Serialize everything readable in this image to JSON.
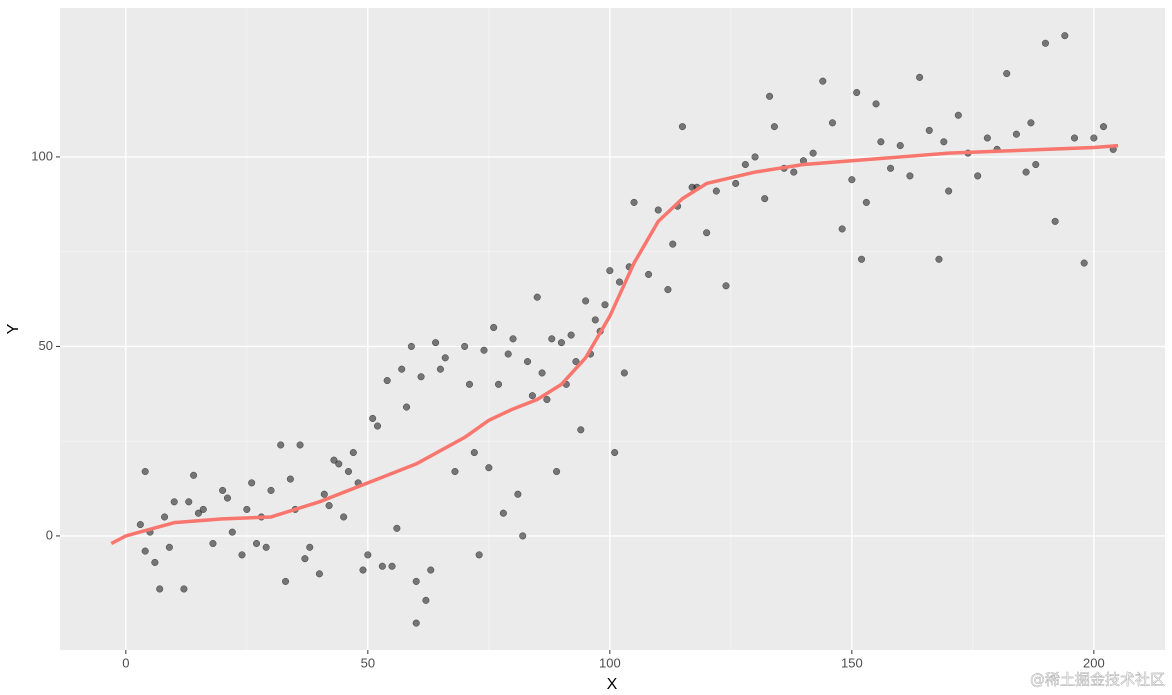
{
  "chart_data": {
    "type": "scatter",
    "xlabel": "X",
    "ylabel": "Y",
    "xlim": [
      -13.6,
      214.7
    ],
    "ylim": [
      -30.1,
      139.3
    ],
    "xticks": [
      0,
      50,
      100,
      150,
      200
    ],
    "yticks": [
      0,
      50,
      100
    ],
    "grid": true,
    "watermark": "@稀土掘金技术社区",
    "points": {
      "color": "rgba(0,0,0,0.5)",
      "x": [
        3,
        4,
        4,
        5,
        6,
        7,
        8,
        9,
        10,
        12,
        13,
        14,
        15,
        16,
        18,
        20,
        21,
        22,
        24,
        25,
        26,
        27,
        28,
        29,
        30,
        32,
        33,
        34,
        35,
        36,
        37,
        38,
        40,
        41,
        42,
        43,
        44,
        45,
        46,
        47,
        48,
        49,
        50,
        51,
        52,
        53,
        54,
        55,
        56,
        57,
        58,
        59,
        60,
        60,
        61,
        62,
        63,
        64,
        65,
        66,
        68,
        70,
        71,
        72,
        73,
        74,
        75,
        76,
        77,
        78,
        79,
        80,
        81,
        82,
        83,
        84,
        85,
        86,
        87,
        88,
        89,
        90,
        91,
        92,
        93,
        94,
        95,
        96,
        97,
        98,
        99,
        100,
        101,
        102,
        103,
        104,
        105,
        108,
        110,
        112,
        113,
        114,
        115,
        117,
        118,
        120,
        122,
        124,
        126,
        128,
        130,
        132,
        133,
        134,
        136,
        138,
        140,
        142,
        144,
        146,
        148,
        150,
        151,
        152,
        153,
        155,
        156,
        158,
        160,
        162,
        164,
        166,
        168,
        169,
        170,
        172,
        174,
        176,
        178,
        180,
        182,
        184,
        186,
        187,
        188,
        190,
        192,
        194,
        196,
        198,
        200,
        202,
        204
      ],
      "y": [
        3,
        17,
        -4,
        1,
        -7,
        -14,
        5,
        -3,
        9,
        -14,
        9,
        16,
        6,
        7,
        -2,
        12,
        10,
        1,
        -5,
        7,
        14,
        -2,
        5,
        -3,
        12,
        24,
        -12,
        15,
        7,
        24,
        -6,
        -3,
        -10,
        11,
        8,
        20,
        19,
        5,
        17,
        22,
        14,
        -9,
        -5,
        31,
        29,
        -8,
        41,
        -8,
        2,
        44,
        34,
        50,
        -23,
        -12,
        42,
        -17,
        -9,
        51,
        44,
        47,
        17,
        50,
        40,
        22,
        -5,
        49,
        18,
        55,
        40,
        6,
        48,
        52,
        11,
        0,
        46,
        37,
        63,
        43,
        36,
        52,
        17,
        51,
        40,
        53,
        46,
        28,
        62,
        48,
        57,
        54,
        61,
        70,
        22,
        67,
        43,
        71,
        88,
        69,
        86,
        65,
        77,
        87,
        108,
        92,
        92,
        80,
        91,
        66,
        93,
        98,
        100,
        89,
        116,
        108,
        97,
        96,
        99,
        101,
        120,
        109,
        81,
        94,
        117,
        73,
        88,
        114,
        104,
        97,
        103,
        95,
        121,
        107,
        73,
        104,
        91,
        111,
        101,
        95,
        105,
        102,
        122,
        106,
        96,
        109,
        98,
        130,
        83,
        132,
        105,
        72,
        105,
        108,
        102
      ]
    },
    "smooth": {
      "color": "#f8766d",
      "x": [
        -3,
        0,
        10,
        20,
        30,
        40,
        50,
        60,
        70,
        75,
        80,
        85,
        90,
        95,
        100,
        105,
        110,
        115,
        120,
        130,
        140,
        150,
        160,
        170,
        180,
        190,
        200,
        205
      ],
      "y": [
        -2,
        0,
        3.5,
        4.5,
        5,
        9,
        14,
        19,
        26,
        30.5,
        33.5,
        36,
        40,
        47,
        58,
        72,
        83,
        89,
        93,
        96,
        98,
        99,
        100,
        101,
        101.5,
        102,
        102.5,
        103
      ]
    }
  }
}
